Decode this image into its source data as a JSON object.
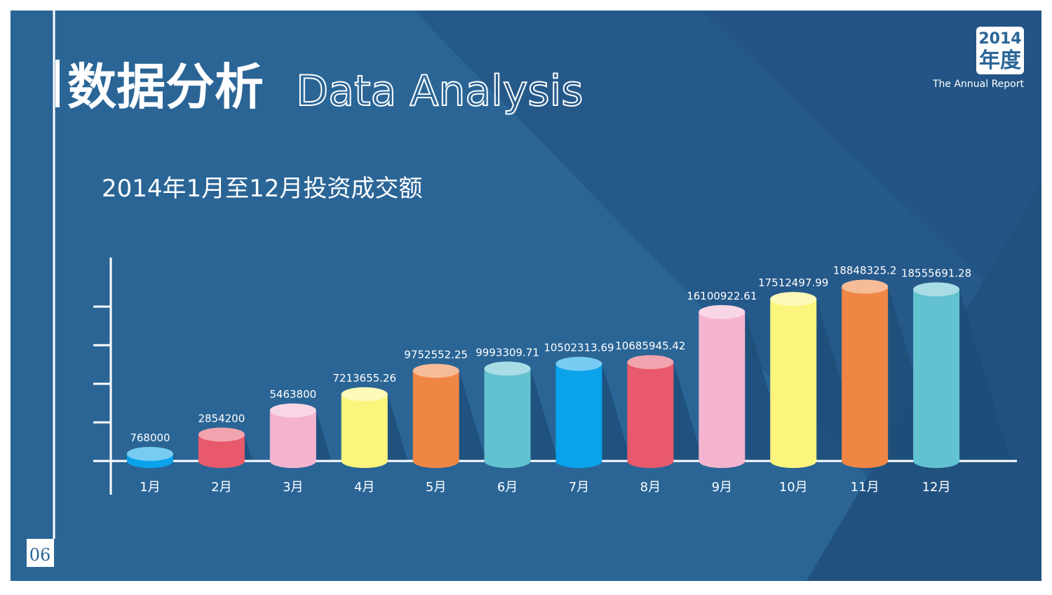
{
  "header": {
    "title_cn": "数据分析",
    "title_en": "Data Analysis",
    "badge_year": "2014",
    "badge_label": "年度",
    "badge_caption": "The Annual Report"
  },
  "page_number": "06",
  "chart_data": {
    "type": "bar",
    "title": "2014年1月至12月投资成交额",
    "categories": [
      "1月",
      "2月",
      "3月",
      "4月",
      "5月",
      "6月",
      "7月",
      "8月",
      "9月",
      "10月",
      "11月",
      "12月"
    ],
    "values": [
      768000,
      2854200,
      5463800,
      7213655.26,
      9752552.25,
      9993309.71,
      10502313.69,
      10685945.42,
      16100922.61,
      17512497.99,
      18848325.2,
      18555691.28
    ],
    "colors": [
      "#0aa2ea",
      "#e85a6b",
      "#f4b4cf",
      "#fbf47d",
      "#ef8644",
      "#62c2cf",
      "#0aa2ea",
      "#e85a6b",
      "#f4b4cf",
      "#fbf47d",
      "#ef8644",
      "#62c2cf"
    ],
    "ylim": [
      0,
      22000000
    ]
  }
}
